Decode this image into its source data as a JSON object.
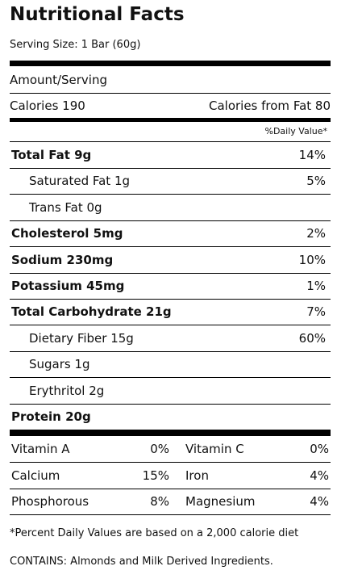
{
  "title": "Nutritional Facts",
  "serving_size": "Serving Size: 1 Bar (60g)",
  "amount_per_serving": "Amount/Serving",
  "calories": "Calories 190",
  "calories_from_fat": "Calories from Fat 80",
  "daily_value_header": "%Daily Value*",
  "nutrients": [
    {
      "name": "Total Fat 9g",
      "daily_value": "14%"
    },
    {
      "name": "Saturated Fat 1g",
      "daily_value": "5%"
    },
    {
      "name": "Trans Fat 0g"
    },
    {
      "name": "Cholesterol 5mg",
      "daily_value": "2%"
    },
    {
      "name": "Sodium 230mg",
      "daily_value": "10%"
    },
    {
      "name": "Potassium 45mg",
      "daily_value": "1%"
    },
    {
      "name": "Total Carbohydrate 21g",
      "daily_value": "7%"
    },
    {
      "name": "Dietary Fiber 15g",
      "daily_value": "60%"
    },
    {
      "name": "Sugars 1g"
    },
    {
      "name": "Erythritol 2g"
    },
    {
      "name": "Protein 20g"
    }
  ],
  "vitamins": [
    [
      {
        "name": "Vitamin A",
        "value": "0%"
      },
      {
        "name": "Vitamin C",
        "value": "0%"
      }
    ],
    [
      {
        "name": "Calcium",
        "value": "15%"
      },
      {
        "name": "Iron",
        "value": "4%"
      }
    ],
    [
      {
        "name": "Phosphorous",
        "value": "8%"
      },
      {
        "name": "Magnesium",
        "value": "4%"
      }
    ]
  ],
  "footnote": "*Percent Daily Values are based on a 2,000 calorie diet",
  "contains": "CONTAINS: Almonds and Milk Derived Ingredients."
}
